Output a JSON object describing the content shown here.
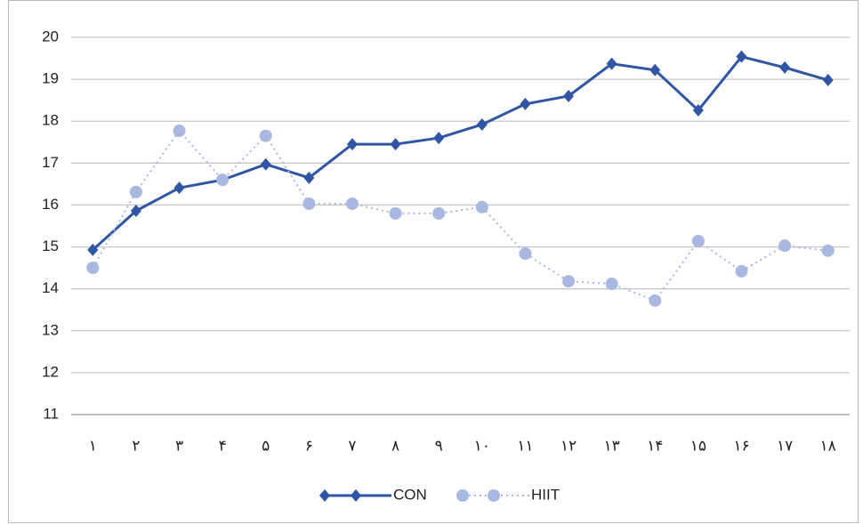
{
  "chart_data": {
    "type": "line",
    "categories": [
      "۱",
      "۲",
      "۳",
      "۴",
      "۵",
      "۶",
      "۷",
      "۸",
      "۹",
      "۱۰",
      "۱۱",
      "۱۲",
      "۱۳",
      "۱۴",
      "۱۵",
      "۱۶",
      "۱۷",
      "۱۸"
    ],
    "series": [
      {
        "name": "CON",
        "color": "#2f55a4",
        "marker": "diamond",
        "dash": "solid",
        "values": [
          14.93,
          15.86,
          16.41,
          16.6,
          16.97,
          16.65,
          17.45,
          17.45,
          17.6,
          17.92,
          18.41,
          18.6,
          19.37,
          19.22,
          18.26,
          19.54,
          19.28,
          18.98
        ]
      },
      {
        "name": "HIIT",
        "color": "#a9b8e0",
        "marker": "circle",
        "dash": "dotted",
        "values": [
          14.5,
          16.31,
          17.77,
          16.6,
          17.65,
          16.03,
          16.03,
          15.8,
          15.8,
          15.95,
          14.84,
          14.18,
          14.12,
          13.72,
          15.14,
          14.42,
          15.03,
          14.91
        ]
      }
    ],
    "ylim": [
      11,
      20
    ],
    "yticks": [
      11,
      12,
      13,
      14,
      15,
      16,
      17,
      18,
      19,
      20
    ],
    "grid": true,
    "legend": "bottom"
  }
}
